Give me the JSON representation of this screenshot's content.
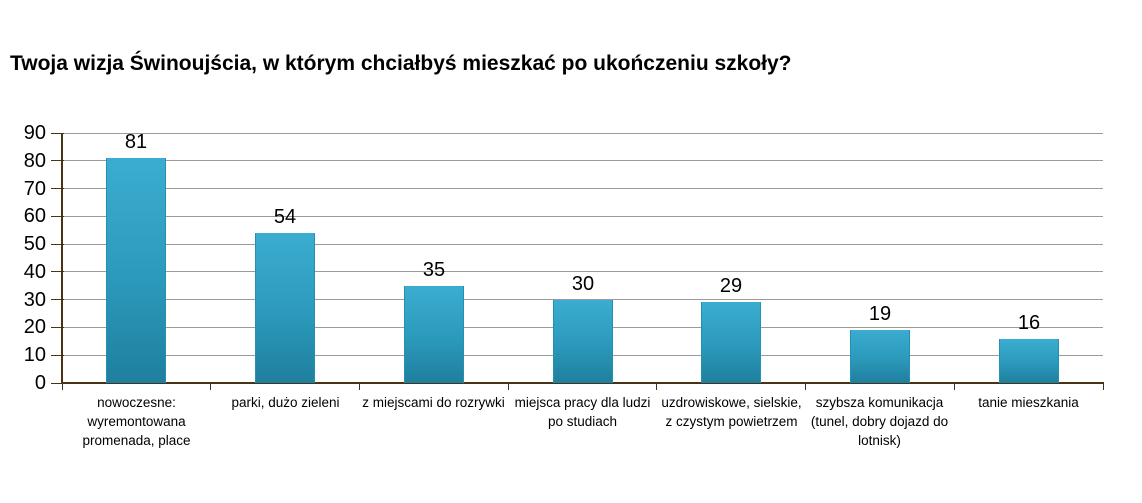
{
  "page": {
    "background": "#ffffff"
  },
  "chart_data": {
    "type": "bar",
    "title": "Twoja wizja Świnoujścia, w którym chciałbyś mieszkać po ukończeniu szkoły?",
    "categories": [
      "nowoczesne: wyremontowana promenada, place",
      "parki, dużo zieleni",
      "z miejscami do rozrywki",
      "miejsca pracy dla ludzi po studiach",
      "uzdrowiskowe, sielskie, z czystym powietrzem",
      "szybsza komunikacja (tunel, dobry dojazd do lotnisk)",
      "tanie mieszkania"
    ],
    "values": [
      81,
      54,
      35,
      30,
      29,
      19,
      16
    ],
    "data_labels_shown": true,
    "xlabel": "",
    "ylabel": "",
    "ylim": [
      0,
      90
    ],
    "ytick_step": 10,
    "yticks": [
      0,
      10,
      20,
      30,
      40,
      50,
      60,
      70,
      80,
      90
    ],
    "grid": true,
    "legend": false,
    "colors": {
      "bar_top": "#3badd0",
      "bar_mid": "#2b99bb",
      "bar_bottom": "#1f7f9e",
      "bar_border": "#2491b3",
      "gridline": "#9b9b9b",
      "axis": "#473416",
      "text": "#000000",
      "title": "#000000"
    }
  }
}
